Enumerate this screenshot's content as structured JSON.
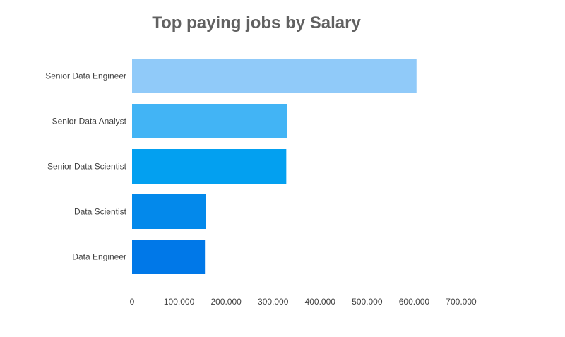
{
  "chart_data": {
    "type": "bar",
    "orientation": "horizontal",
    "title": "Top paying jobs by Salary",
    "xlabel": "",
    "ylabel": "",
    "categories": [
      "Senior Data Engineer",
      "Senior Data Analyst",
      "Senior Data Scientist",
      "Data Scientist",
      "Data Engineer"
    ],
    "values": [
      605000,
      330000,
      328000,
      157000,
      155000
    ],
    "xlim": [
      0,
      700000
    ],
    "x_ticks": [
      0,
      100000,
      200000,
      300000,
      400000,
      500000,
      600000,
      700000
    ],
    "x_tick_labels": [
      "0",
      "100.000",
      "200.000",
      "300.000",
      "400.000",
      "500.000",
      "600.000",
      "700.000"
    ],
    "grid": false,
    "legend": "none",
    "colors": [
      "#90caf9",
      "#42b4f5",
      "#03a0f0",
      "#0389eb",
      "#0078e8"
    ]
  }
}
